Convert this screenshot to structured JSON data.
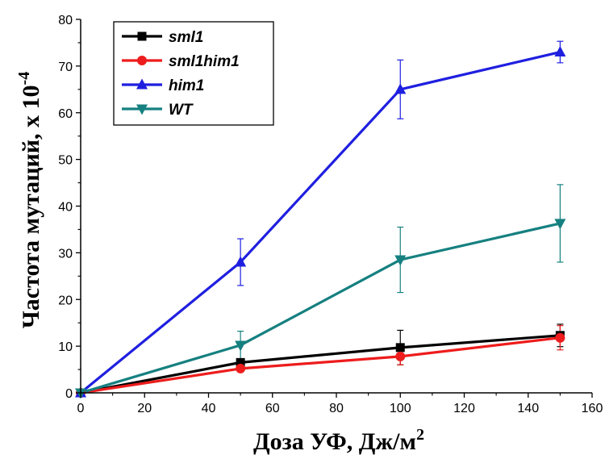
{
  "chart_data": {
    "type": "line",
    "xlabel": "Доза УФ, Дж/м",
    "xlabel_sup": "2",
    "ylabel": "Частота мутаций, x 10",
    "ylabel_sup": "-4",
    "xlim": [
      0,
      160
    ],
    "ylim": [
      0,
      80
    ],
    "xticks": [
      "0",
      "20",
      "40",
      "60",
      "80",
      "100",
      "120",
      "140",
      "160"
    ],
    "yticks": [
      "0",
      "10",
      "20",
      "30",
      "40",
      "50",
      "60",
      "70",
      "80"
    ],
    "x": [
      0,
      50,
      100,
      150
    ],
    "grid": false,
    "legend_position": "top-left",
    "series": [
      {
        "name": "sml1",
        "color": "#000000",
        "marker": "square",
        "values": [
          0,
          6.5,
          9.7,
          12.3
        ],
        "errors": [
          0,
          0.8,
          3.7,
          2.4
        ]
      },
      {
        "name": "sml1him1",
        "color": "#ee1c1c",
        "marker": "circle",
        "values": [
          0,
          5.2,
          7.8,
          11.8
        ],
        "errors": [
          0,
          0.5,
          1.8,
          2.6
        ]
      },
      {
        "name": "him1",
        "color": "#1f1fe0",
        "marker": "triangle-up",
        "values": [
          0,
          28,
          65,
          73
        ],
        "errors": [
          0,
          5,
          6.3,
          2.3
        ]
      },
      {
        "name": "WT",
        "color": "#168080",
        "marker": "triangle-down",
        "values": [
          0,
          10.2,
          28.5,
          36.3
        ],
        "errors": [
          0,
          3,
          7,
          8.3
        ]
      }
    ]
  }
}
